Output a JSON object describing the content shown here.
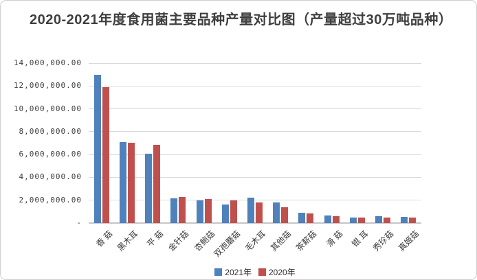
{
  "chart_data": {
    "type": "bar",
    "title": "2020-2021年度食用菌主要品种产量对比图（产量超过30万吨品种）",
    "categories": [
      "香 菇",
      "黑木耳",
      "平 菇",
      "金针菇",
      "杏鲍菇",
      "双孢蘑菇",
      "毛木耳",
      "其他菇",
      "茶薪菇",
      "滑 菇",
      "银 耳",
      "秀珍菇",
      "真姬菇"
    ],
    "series": [
      {
        "name": "2021年",
        "color": "#4F81BD",
        "values": [
          12950000,
          7070000,
          6080000,
          2150000,
          2000000,
          1600000,
          2200000,
          1830000,
          880000,
          650000,
          500000,
          610000,
          550000
        ]
      },
      {
        "name": "2020年",
        "color": "#C0504D",
        "values": [
          11880000,
          7060000,
          6850000,
          2300000,
          2090000,
          2000000,
          1810000,
          1400000,
          870000,
          620000,
          500000,
          480000,
          460000
        ]
      }
    ],
    "xlabel": "",
    "ylabel": "",
    "ylim": [
      0,
      14000000
    ],
    "y_tick_interval": 2000000,
    "y_tick_labels": [
      "-",
      "2,000,000.00",
      "4,000,000.00",
      "6,000,000.00",
      "8,000,000.00",
      "10,000,000.00",
      "12,000,000.00",
      "14,000,000.00"
    ],
    "grid": true,
    "legend_position": "bottom-center",
    "x_label_rotation_deg": 45,
    "gridline_color": "#d9d9d9",
    "axis_line_color": "#c6c6c6"
  }
}
